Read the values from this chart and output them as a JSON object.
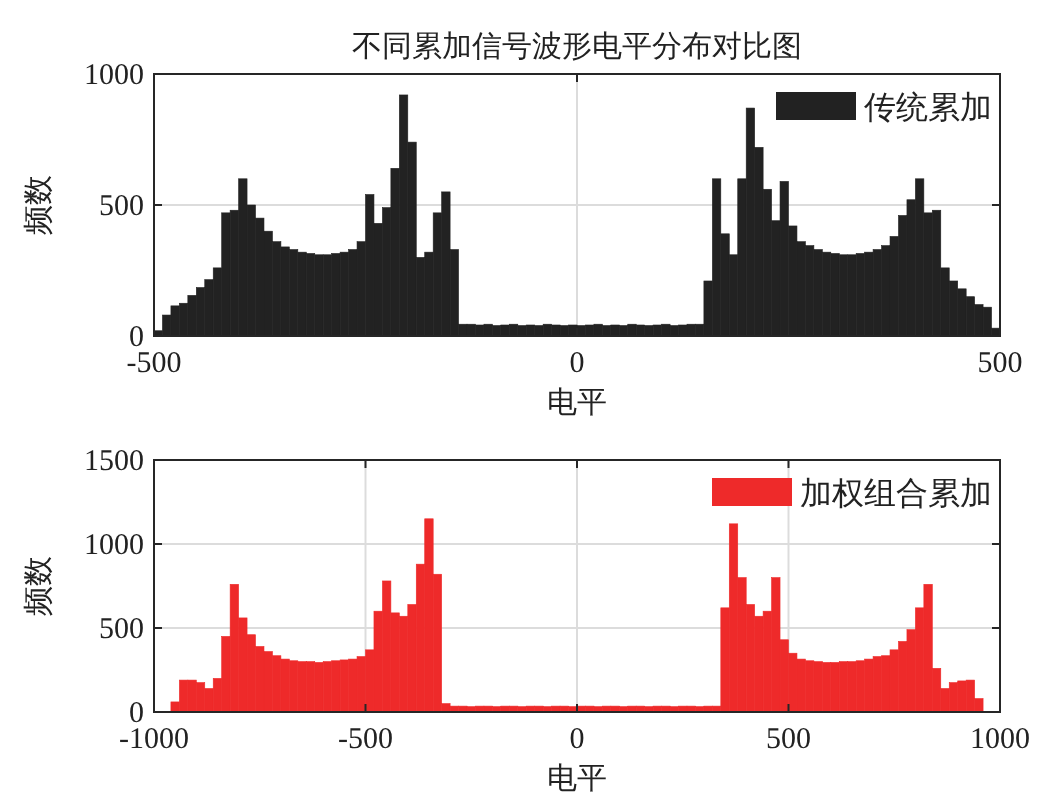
{
  "chart_data": [
    {
      "type": "histogram",
      "title": "不同累加信号波形电平分布对比图",
      "xlabel": "电平",
      "ylabel": "频数",
      "bins": [
        -500,
        -490,
        -480,
        -470,
        -460,
        -450,
        -440,
        -430,
        -420,
        -410,
        -400,
        -390,
        -380,
        -370,
        -360,
        -350,
        -340,
        -330,
        -320,
        -310,
        -300,
        -290,
        -280,
        -270,
        -260,
        -250,
        -240,
        -230,
        -220,
        -210,
        -200,
        -190,
        -180,
        -170,
        -160,
        -150,
        -140,
        -130,
        -120,
        -110,
        -100,
        -90,
        -80,
        -70,
        -60,
        -50,
        -40,
        -30,
        -20,
        -10,
        0,
        10,
        20,
        30,
        40,
        50,
        60,
        70,
        80,
        90,
        100,
        110,
        120,
        130,
        140,
        150,
        160,
        170,
        180,
        190,
        200,
        210,
        220,
        230,
        240,
        250,
        260,
        270,
        280,
        290,
        300,
        310,
        320,
        330,
        340,
        350,
        360,
        370,
        380,
        390,
        400,
        410,
        420,
        430,
        440,
        450,
        460,
        470,
        480,
        490,
        500
      ],
      "series": [
        {
          "name": "传统累加",
          "color": "#222222",
          "values": [
            20,
            80,
            115,
            125,
            155,
            185,
            215,
            260,
            470,
            480,
            600,
            500,
            450,
            400,
            360,
            340,
            330,
            320,
            315,
            310,
            310,
            315,
            320,
            330,
            360,
            540,
            430,
            490,
            640,
            920,
            740,
            300,
            320,
            470,
            550,
            330,
            45,
            45,
            42,
            45,
            40,
            42,
            45,
            40,
            42,
            40,
            45,
            42,
            40,
            42,
            40,
            42,
            45,
            40,
            42,
            40,
            45,
            42,
            40,
            42,
            45,
            40,
            42,
            45,
            45,
            210,
            600,
            390,
            310,
            600,
            870,
            720,
            560,
            440,
            590,
            420,
            360,
            345,
            330,
            320,
            315,
            310,
            310,
            315,
            320,
            330,
            345,
            380,
            460,
            520,
            600,
            470,
            480,
            260,
            210,
            180,
            150,
            120,
            110,
            30
          ]
        }
      ],
      "xlim": [
        -500,
        500
      ],
      "ylim": [
        0,
        1000
      ],
      "xticks": [
        -500,
        0,
        500
      ],
      "yticks": [
        0,
        500,
        1000
      ],
      "grid": true,
      "legend": "top right"
    },
    {
      "type": "histogram",
      "xlabel": "电平",
      "ylabel": "频数",
      "bins": [
        -1000,
        -980,
        -960,
        -940,
        -920,
        -900,
        -880,
        -860,
        -840,
        -820,
        -800,
        -780,
        -760,
        -740,
        -720,
        -700,
        -680,
        -660,
        -640,
        -620,
        -600,
        -580,
        -560,
        -540,
        -520,
        -500,
        -480,
        -460,
        -440,
        -420,
        -400,
        -380,
        -360,
        -340,
        -320,
        -300,
        -280,
        -260,
        -240,
        -220,
        -200,
        -180,
        -160,
        -140,
        -120,
        -100,
        -80,
        -60,
        -40,
        -20,
        0,
        20,
        40,
        60,
        80,
        100,
        120,
        140,
        160,
        180,
        200,
        220,
        240,
        260,
        280,
        300,
        320,
        340,
        360,
        380,
        400,
        420,
        440,
        460,
        480,
        500,
        520,
        540,
        560,
        580,
        600,
        620,
        640,
        660,
        680,
        700,
        720,
        740,
        760,
        780,
        800,
        820,
        840,
        860,
        880,
        900,
        920,
        940,
        960,
        980,
        1000
      ],
      "series": [
        {
          "name": "加权组合累加",
          "color": "#ee2a2a",
          "values": [
            0,
            0,
            60,
            190,
            190,
            175,
            140,
            200,
            450,
            760,
            560,
            460,
            390,
            360,
            335,
            315,
            305,
            300,
            300,
            295,
            300,
            305,
            310,
            315,
            330,
            370,
            600,
            780,
            590,
            570,
            640,
            880,
            1150,
            820,
            50,
            35,
            35,
            32,
            35,
            35,
            32,
            35,
            35,
            32,
            35,
            35,
            32,
            35,
            35,
            32,
            35,
            35,
            32,
            35,
            35,
            32,
            35,
            35,
            32,
            35,
            35,
            32,
            35,
            35,
            32,
            35,
            35,
            620,
            1120,
            800,
            640,
            570,
            600,
            800,
            430,
            350,
            315,
            305,
            300,
            295,
            295,
            300,
            300,
            305,
            315,
            330,
            335,
            370,
            420,
            490,
            620,
            760,
            260,
            140,
            175,
            185,
            190,
            80,
            0,
            0
          ]
        }
      ],
      "xlim": [
        -1000,
        1000
      ],
      "ylim": [
        0,
        1500
      ],
      "xticks": [
        -1000,
        -500,
        0,
        500,
        1000
      ],
      "yticks": [
        0,
        500,
        1000,
        1500
      ],
      "grid": true,
      "legend": "top right"
    }
  ]
}
